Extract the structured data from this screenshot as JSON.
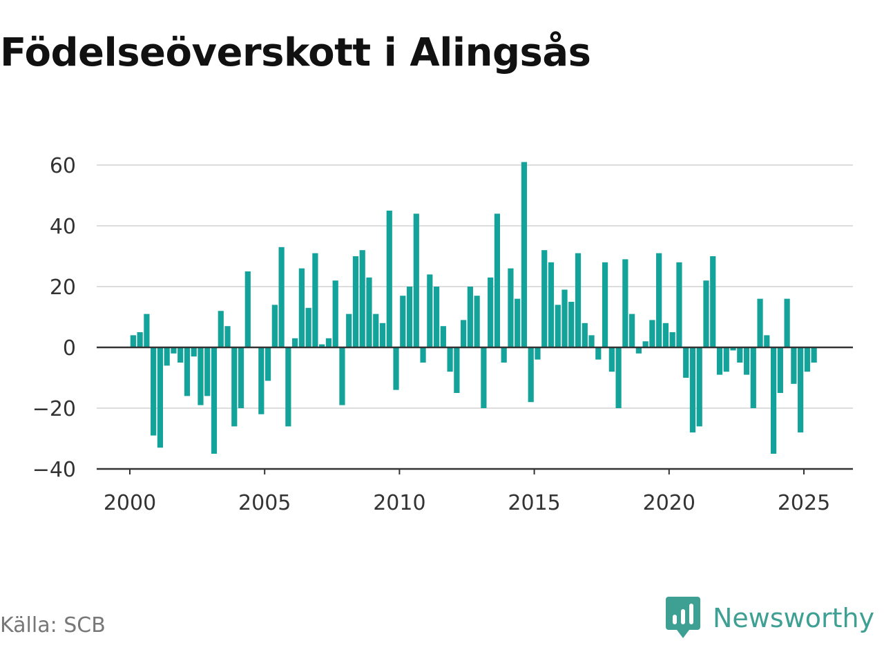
{
  "chart_data": {
    "type": "bar",
    "title": "Födelseöverskott i Alingsås",
    "x_axis": {
      "tick_labels": [
        "2000",
        "2005",
        "2010",
        "2015",
        "2020",
        "2025"
      ],
      "range": [
        1999.3,
        2026.8
      ]
    },
    "y_axis": {
      "tick_values": [
        -40,
        -20,
        0,
        20,
        40,
        60
      ],
      "tick_labels": [
        "−40",
        "−20",
        "0",
        "20",
        "40",
        "60"
      ],
      "range": [
        -40,
        60
      ]
    },
    "grid": true,
    "bar_color": "#13a39a",
    "series": [
      {
        "x": [
          "2000-Q1",
          "2000-Q2",
          "2000-Q3",
          "2000-Q4",
          "2001-Q1",
          "2001-Q2",
          "2001-Q3",
          "2001-Q4",
          "2002-Q1",
          "2002-Q2",
          "2002-Q3",
          "2002-Q4",
          "2003-Q1",
          "2003-Q2",
          "2003-Q3",
          "2003-Q4",
          "2004-Q1",
          "2004-Q2",
          "2004-Q3",
          "2004-Q4",
          "2005-Q1",
          "2005-Q2",
          "2005-Q3",
          "2005-Q4",
          "2006-Q1",
          "2006-Q2",
          "2006-Q3",
          "2006-Q4",
          "2007-Q1",
          "2007-Q2",
          "2007-Q3",
          "2007-Q4",
          "2008-Q1",
          "2008-Q2",
          "2008-Q3",
          "2008-Q4",
          "2009-Q1",
          "2009-Q2",
          "2009-Q3",
          "2009-Q4",
          "2010-Q1",
          "2010-Q2",
          "2010-Q3",
          "2010-Q4",
          "2011-Q1",
          "2011-Q2",
          "2011-Q3",
          "2011-Q4",
          "2012-Q1",
          "2012-Q2",
          "2012-Q3",
          "2012-Q4",
          "2013-Q1",
          "2013-Q2",
          "2013-Q3",
          "2013-Q4",
          "2014-Q1",
          "2014-Q2",
          "2014-Q3",
          "2014-Q4",
          "2015-Q1",
          "2015-Q2",
          "2015-Q3",
          "2015-Q4",
          "2016-Q1",
          "2016-Q2",
          "2016-Q3",
          "2016-Q4",
          "2017-Q1",
          "2017-Q2",
          "2017-Q3",
          "2017-Q4",
          "2018-Q1",
          "2018-Q2",
          "2018-Q3",
          "2018-Q4",
          "2019-Q1",
          "2019-Q2",
          "2019-Q3",
          "2019-Q4",
          "2020-Q1",
          "2020-Q2",
          "2020-Q3",
          "2020-Q4",
          "2021-Q1",
          "2021-Q2",
          "2021-Q3",
          "2021-Q4",
          "2022-Q1",
          "2022-Q2",
          "2022-Q3",
          "2022-Q4",
          "2023-Q1",
          "2023-Q2",
          "2023-Q3",
          "2023-Q4",
          "2024-Q1",
          "2024-Q2",
          "2024-Q3",
          "2024-Q4",
          "2025-Q1",
          "2025-Q2"
        ],
        "values": [
          4,
          5,
          11,
          -29,
          -33,
          -6,
          -2,
          -5,
          -16,
          -3,
          -19,
          -16,
          -35,
          12,
          7,
          -26,
          -20,
          25,
          0,
          -22,
          -11,
          14,
          33,
          -26,
          3,
          26,
          13,
          31,
          1,
          3,
          22,
          -19,
          11,
          30,
          32,
          23,
          11,
          8,
          45,
          -14,
          17,
          20,
          44,
          -5,
          24,
          20,
          7,
          -8,
          -15,
          9,
          20,
          17,
          -20,
          23,
          44,
          -5,
          26,
          16,
          61,
          -18,
          -4,
          32,
          28,
          14,
          19,
          15,
          31,
          8,
          4,
          -4,
          28,
          -8,
          -20,
          29,
          11,
          -2,
          2,
          9,
          31,
          8,
          5,
          28,
          -10,
          -28,
          -26,
          22,
          30,
          -9,
          -8,
          -1,
          -5,
          -9,
          -20,
          16,
          4,
          -35,
          -15,
          16,
          -12,
          -28,
          -8,
          -5
        ]
      }
    ]
  },
  "footer": {
    "source": "Källa: SCB",
    "brand": "Newsworthy",
    "brand_icon": "newsworthy-logo-icon",
    "brand_color": "#3e9f93"
  }
}
